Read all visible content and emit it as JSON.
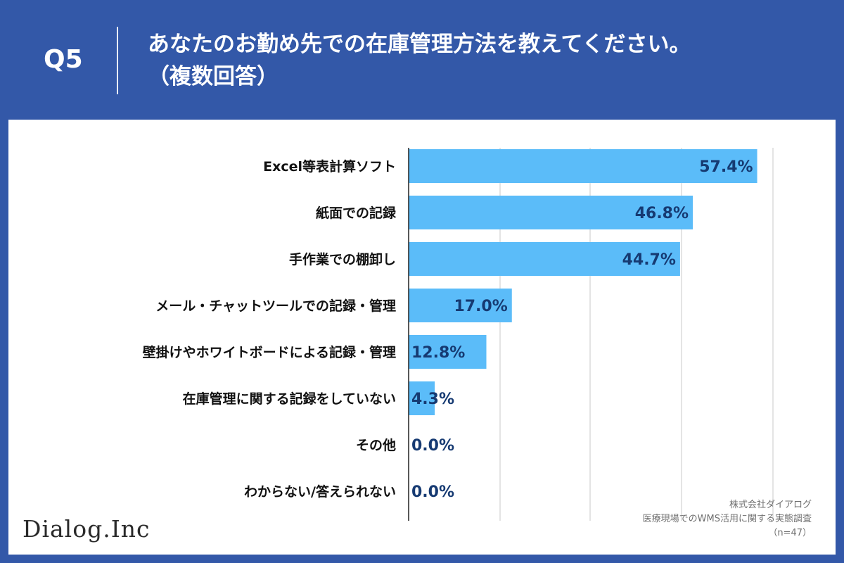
{
  "header": {
    "question_number": "Q5",
    "title_line1": "あなたのお勤め先での在庫管理方法を教えてください。",
    "title_line2": "（複数回答）"
  },
  "chart_data": {
    "type": "bar",
    "orientation": "horizontal",
    "categories": [
      "Excel等表計算ソフト",
      "紙面での記録",
      "手作業での棚卸し",
      "メール・チャットツールでの記録・管理",
      "壁掛けやホワイトボードによる記録・管理",
      "在庫管理に関する記録をしていない",
      "その他",
      "わからない/答えられない"
    ],
    "values": [
      57.4,
      46.8,
      44.7,
      17.0,
      12.8,
      4.3,
      0.0,
      0.0
    ],
    "value_labels": [
      "57.4%",
      "46.8%",
      "44.7%",
      "17.0%",
      "12.8%",
      "4.3%",
      "0.0%",
      "0.0%"
    ],
    "xlim": [
      0,
      60
    ],
    "grid": true,
    "bar_color": "#5bbcf9",
    "label_color": "#163a72"
  },
  "footer": {
    "logo_text": "Dialog.Inc",
    "source_company": "株式会社ダイアログ",
    "source_survey": "医療現場でのWMS活用に関する実態調査",
    "sample_size": "（n=47）"
  },
  "colors": {
    "background": "#3358a8",
    "card": "#ffffff"
  }
}
